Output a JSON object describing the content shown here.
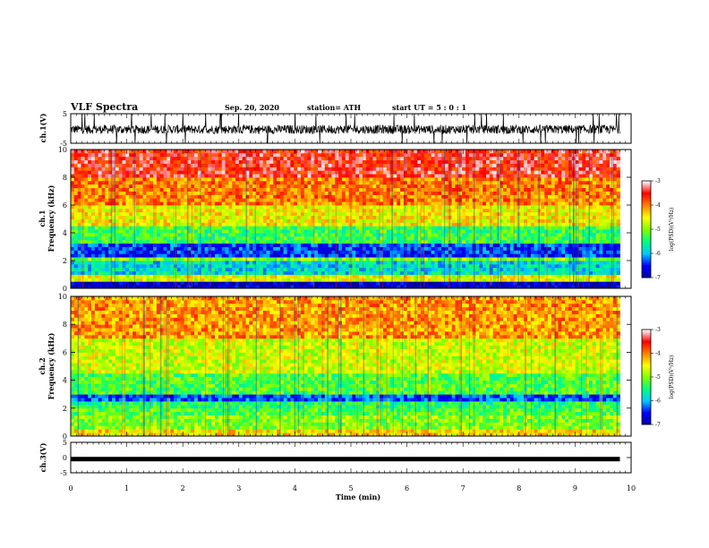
{
  "header": {
    "title": "VLF Spectra",
    "date": "Sep. 20, 2020",
    "station": "station= ATH",
    "start": "start  UT =   5 : 0  : 1"
  },
  "chart_data": [
    {
      "type": "line",
      "name": "ch1-waveform",
      "ylabel": "ch.1(V)",
      "ylim": [
        -5,
        5
      ],
      "yticks": [
        "5",
        "-5"
      ],
      "xlim": [
        0,
        10
      ],
      "x_data_end": 9.8,
      "description_values": {
        "baseline_v": -0.3,
        "noise_amplitude_v": 1.5,
        "spikes_to_limit": true
      }
    },
    {
      "type": "heatmap",
      "name": "ch1-spectrogram",
      "ylabel": "ch.1\nFrequency  (kHz)",
      "ylabel_line1": "ch.1",
      "ylabel_line2": "Frequency  (kHz)",
      "ylim": [
        0,
        10
      ],
      "yticks": [
        "0",
        "2",
        "4",
        "6",
        "8",
        "10"
      ],
      "xlim": [
        0,
        10
      ],
      "x_data_end": 9.8,
      "zlim": [
        -7,
        -3
      ],
      "bands_khz": [
        {
          "from": 0,
          "to": 0.4,
          "level": -6.8
        },
        {
          "from": 0.4,
          "to": 1.0,
          "level": -4.6
        },
        {
          "from": 1.0,
          "to": 2.0,
          "level": -5.8
        },
        {
          "from": 2.0,
          "to": 2.2,
          "level": -5.0
        },
        {
          "from": 2.2,
          "to": 3.3,
          "level": -6.4
        },
        {
          "from": 3.3,
          "to": 4.5,
          "level": -5.3
        },
        {
          "from": 4.5,
          "to": 6.0,
          "level": -4.5
        },
        {
          "from": 6.0,
          "to": 8.0,
          "level": -4.0
        },
        {
          "from": 8.0,
          "to": 10.0,
          "level": -3.5
        }
      ]
    },
    {
      "type": "heatmap",
      "name": "ch2-spectrogram",
      "ylabel_line1": "ch.2",
      "ylabel_line2": "Frequency  (kHz)",
      "ylim": [
        0,
        10
      ],
      "yticks": [
        "0",
        "2",
        "4",
        "6",
        "8",
        "10"
      ],
      "xlim": [
        0,
        10
      ],
      "x_data_end": 9.8,
      "zlim": [
        -7,
        -3
      ],
      "bands_khz": [
        {
          "from": 0,
          "to": 0.4,
          "level": -4.4
        },
        {
          "from": 0.4,
          "to": 1.6,
          "level": -5.0
        },
        {
          "from": 1.6,
          "to": 2.0,
          "level": -5.2
        },
        {
          "from": 2.0,
          "to": 2.4,
          "level": -5.4
        },
        {
          "from": 2.4,
          "to": 3.0,
          "level": -6.3
        },
        {
          "from": 3.0,
          "to": 4.5,
          "level": -5.2
        },
        {
          "from": 4.5,
          "to": 7.0,
          "level": -4.7
        },
        {
          "from": 7.0,
          "to": 10.0,
          "level": -4.1
        }
      ]
    },
    {
      "type": "line",
      "name": "ch3-waveform",
      "ylabel": "ch.3(V)",
      "ylim": [
        -5,
        5
      ],
      "yticks": [
        "5",
        "0",
        "-5"
      ],
      "xlim": [
        0,
        10
      ],
      "x_data_end": 9.8,
      "description_values": {
        "baseline_v": -0.5
      }
    }
  ],
  "xaxis": {
    "label": "Time  (min)",
    "ticks": [
      "0",
      "1",
      "2",
      "3",
      "4",
      "5",
      "6",
      "7",
      "8",
      "9",
      "10"
    ]
  },
  "colorbar": {
    "label": "log(PSD)(V²/Hz)",
    "ticks": [
      "-3",
      "-4",
      "-5",
      "-6",
      "-7"
    ],
    "range": [
      -7,
      -3
    ],
    "colors": [
      "#0000a0",
      "#0000ff",
      "#00c8ff",
      "#00ff80",
      "#80ff00",
      "#ffff00",
      "#ff8000",
      "#ff0000",
      "#ffffff"
    ]
  }
}
